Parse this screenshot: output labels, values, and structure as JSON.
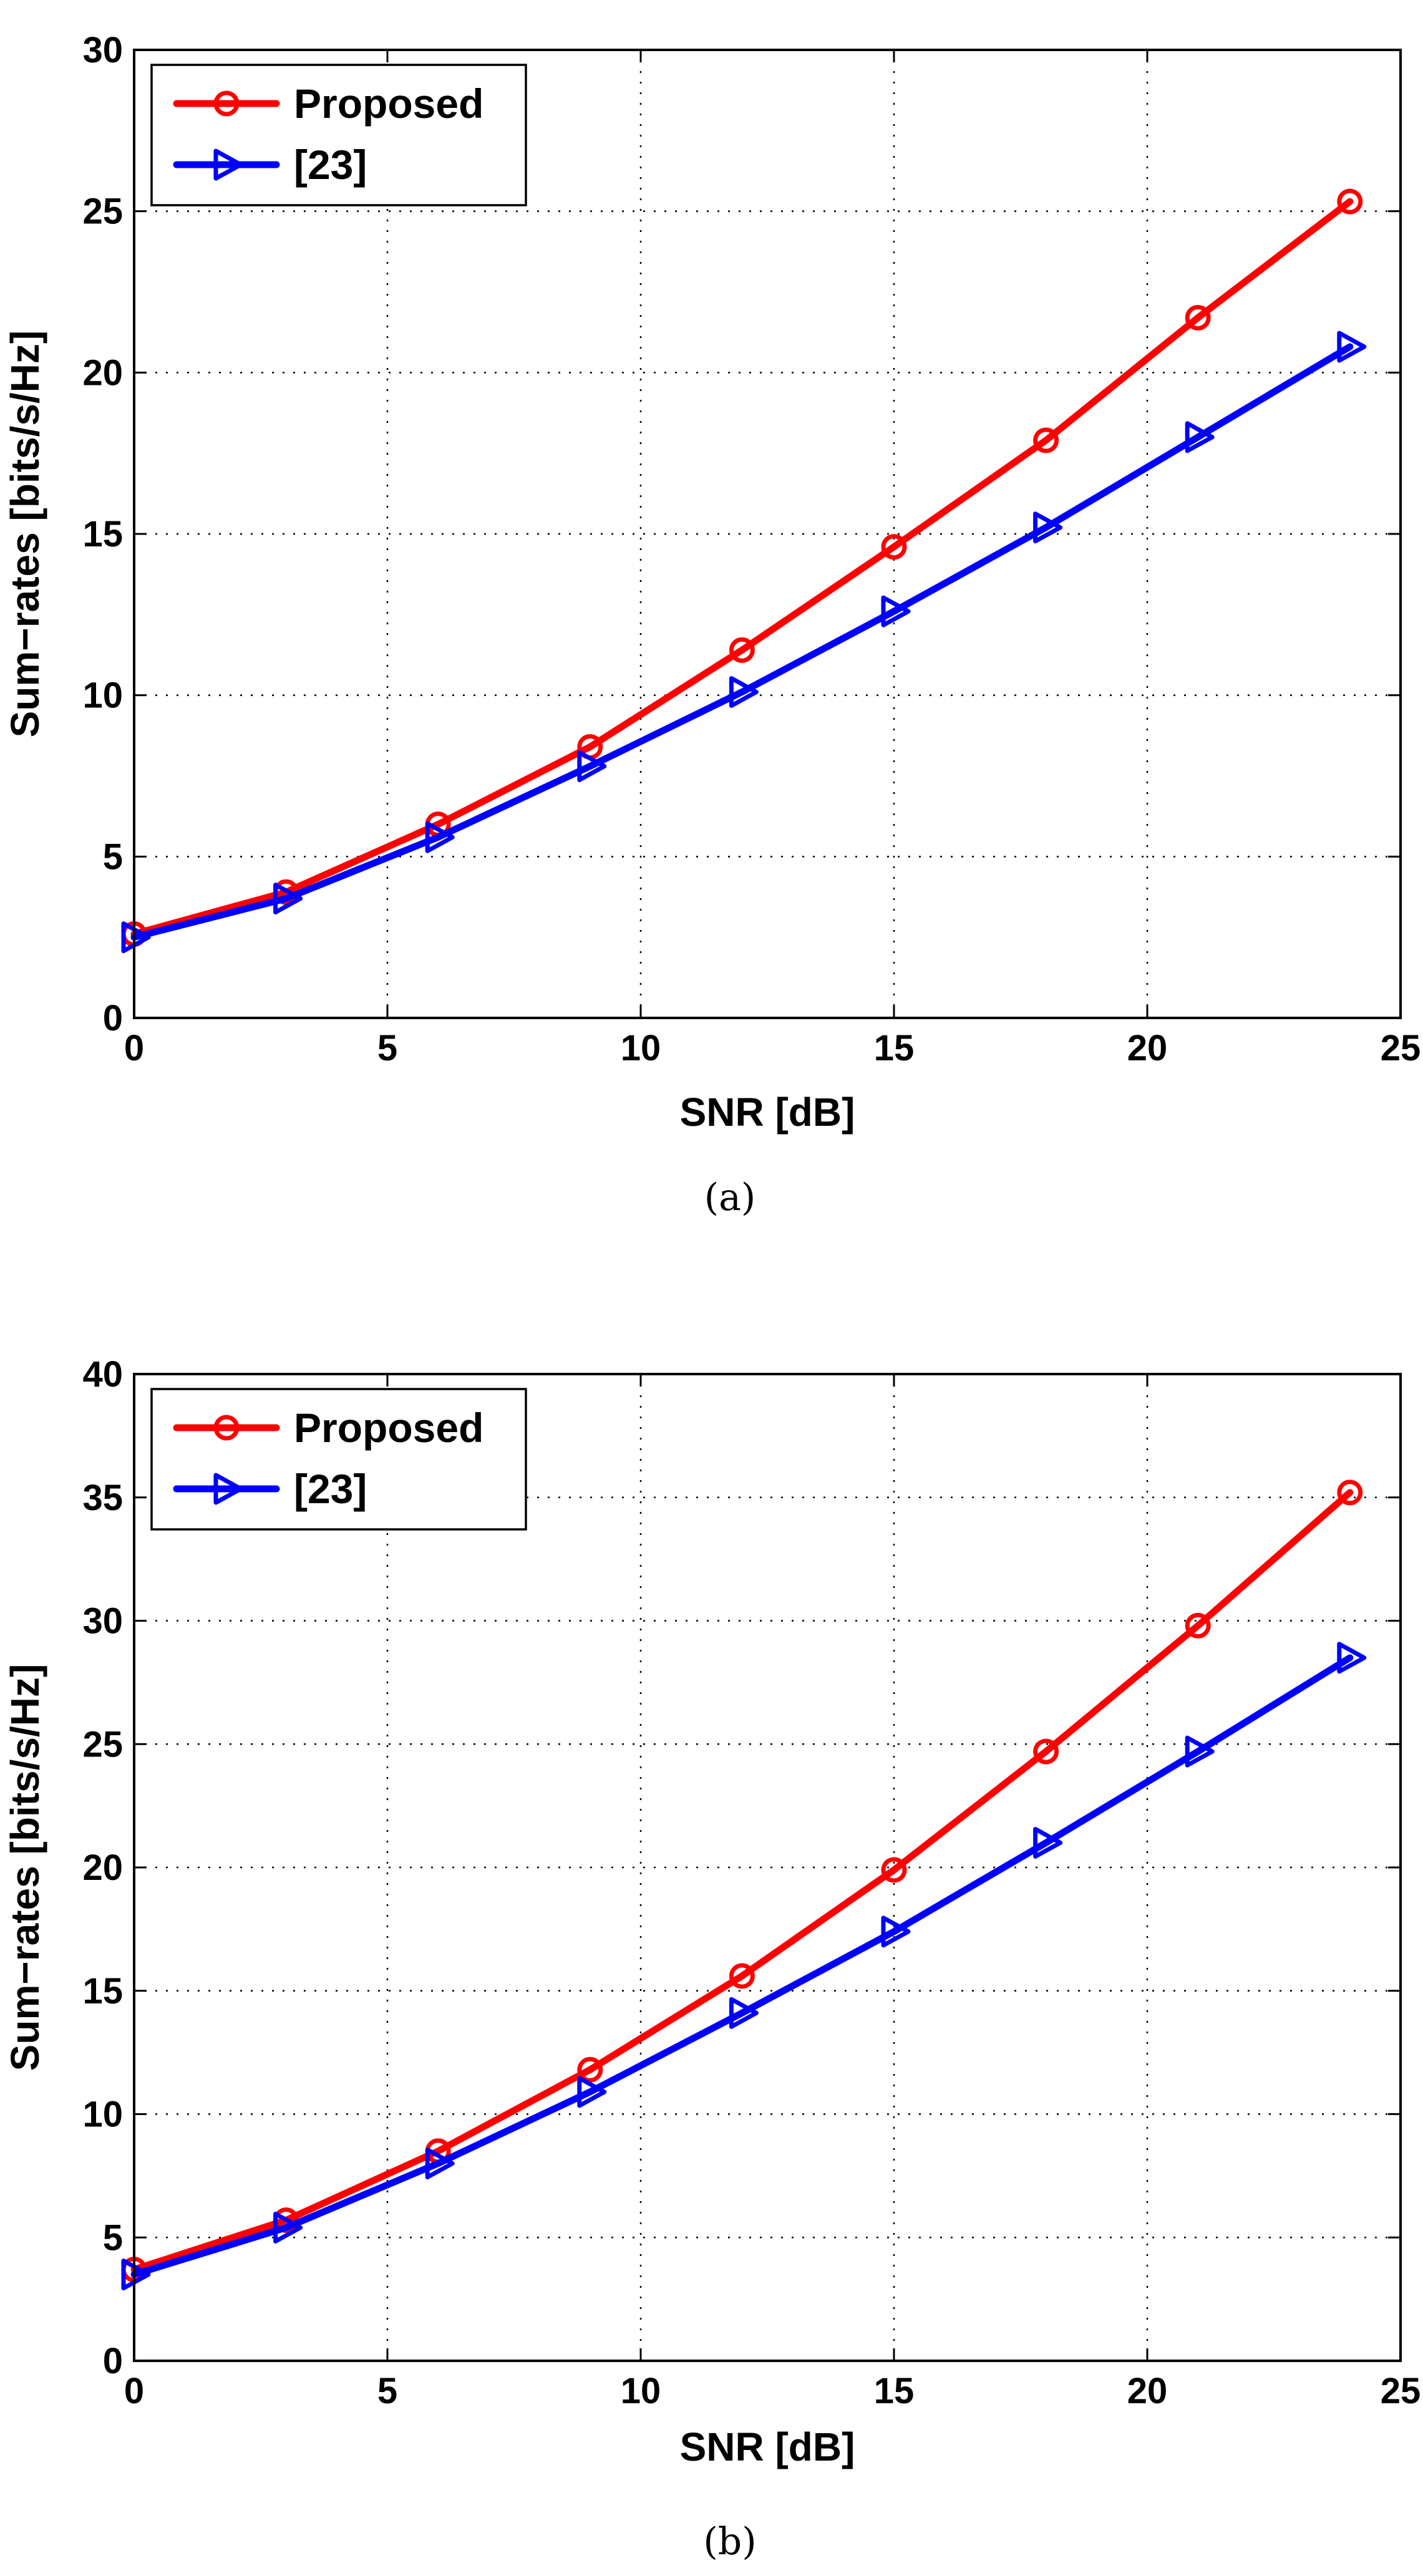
{
  "figure": {
    "panel_a_caption": "(a)",
    "panel_b_caption": "(b)"
  },
  "chart_data": [
    {
      "type": "line",
      "panel": "a",
      "caption": "(a)",
      "title": "",
      "xlabel": "SNR [dB]",
      "ylabel": "Sum−rates [bits/s/Hz]",
      "xlim": [
        0,
        25
      ],
      "ylim": [
        0,
        30
      ],
      "xticks": [
        0,
        5,
        10,
        15,
        20,
        25
      ],
      "yticks": [
        0,
        5,
        10,
        15,
        20,
        25,
        30
      ],
      "grid": true,
      "legend_position": "top-left",
      "x": [
        0,
        3,
        6,
        9,
        12,
        15,
        18,
        21,
        24
      ],
      "series": [
        {
          "name": "Proposed",
          "color": "#ff0000",
          "marker": "circle",
          "values": [
            2.6,
            3.9,
            6.0,
            8.4,
            11.4,
            14.6,
            17.9,
            21.7,
            25.3
          ]
        },
        {
          "name": "[23]",
          "color": "#0000ff",
          "marker": "triangle-right",
          "values": [
            2.5,
            3.7,
            5.6,
            7.8,
            10.1,
            12.6,
            15.2,
            18.0,
            20.8
          ]
        }
      ]
    },
    {
      "type": "line",
      "panel": "b",
      "caption": "(b)",
      "title": "",
      "xlabel": "SNR [dB]",
      "ylabel": "Sum−rates [bits/s/Hz]",
      "xlim": [
        0,
        25
      ],
      "ylim": [
        0,
        40
      ],
      "xticks": [
        0,
        5,
        10,
        15,
        20,
        25
      ],
      "yticks": [
        0,
        5,
        10,
        15,
        20,
        25,
        30,
        35,
        40
      ],
      "grid": true,
      "legend_position": "top-left",
      "x": [
        0,
        3,
        6,
        9,
        12,
        15,
        18,
        21,
        24
      ],
      "series": [
        {
          "name": "Proposed",
          "color": "#ff0000",
          "marker": "circle",
          "values": [
            3.7,
            5.7,
            8.5,
            11.8,
            15.6,
            19.9,
            24.7,
            29.8,
            35.2
          ]
        },
        {
          "name": "[23]",
          "color": "#0000ff",
          "marker": "triangle-right",
          "values": [
            3.5,
            5.4,
            8.0,
            10.9,
            14.1,
            17.4,
            21.0,
            24.7,
            28.5
          ]
        }
      ]
    }
  ]
}
